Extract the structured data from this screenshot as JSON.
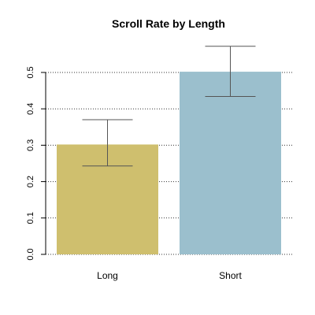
{
  "chart_data": {
    "type": "bar",
    "title": "Scroll Rate by Length",
    "xlabel": "",
    "ylabel": "",
    "categories": [
      "Long",
      "Short"
    ],
    "values": [
      0.302,
      0.502
    ],
    "error_low": [
      0.243,
      0.434
    ],
    "error_high": [
      0.37,
      0.572
    ],
    "ylim": [
      0,
      0.5
    ],
    "yticks": [
      0.0,
      0.1,
      0.2,
      0.3,
      0.4,
      0.5
    ],
    "ytick_labels": [
      "0.0",
      "0.1",
      "0.2",
      "0.3",
      "0.4",
      "0.5"
    ],
    "grid": "horizontal-dotted",
    "colors": {
      "bars": [
        "#cfbf6e",
        "#9bbfcd"
      ],
      "error_bars": "#555555",
      "grid": "#333333",
      "axis": "#000000"
    }
  }
}
